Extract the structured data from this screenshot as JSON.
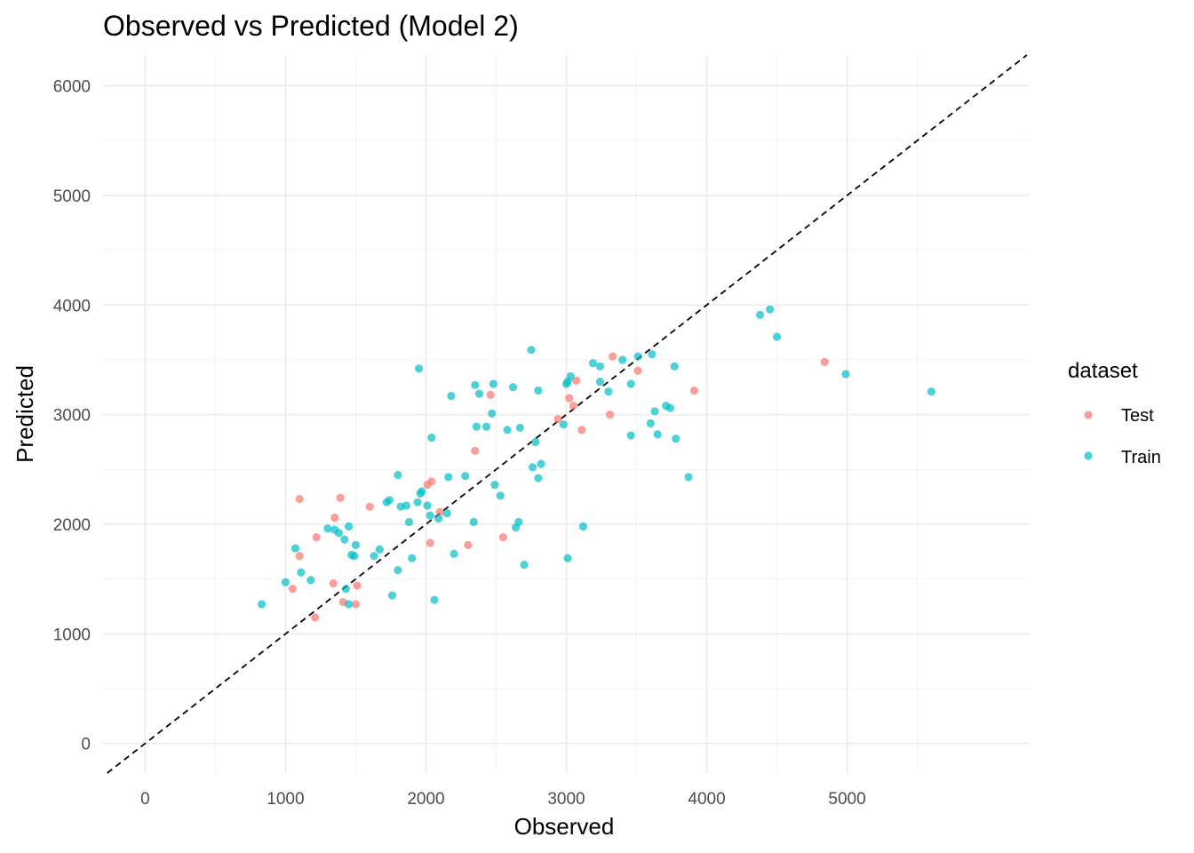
{
  "chart_data": {
    "type": "scatter",
    "title": "Observed vs Predicted (Model 2)",
    "xlabel": "Observed",
    "ylabel": "Predicted",
    "xlim": [
      -300,
      6300
    ],
    "ylim": [
      -270,
      6280
    ],
    "x_ticks": [
      0,
      1000,
      2000,
      3000,
      4000,
      5000
    ],
    "y_ticks": [
      0,
      1000,
      2000,
      3000,
      4000,
      5000,
      6000
    ],
    "x_tick_labels": [
      "0",
      "1000",
      "2000",
      "3000",
      "4000",
      "5000"
    ],
    "y_tick_labels": [
      "0",
      "1000",
      "2000",
      "3000",
      "4000",
      "5000",
      "6000"
    ],
    "reference_line": "y = x",
    "legend": {
      "title": "dataset",
      "position": "right"
    },
    "series": [
      {
        "name": "Test",
        "color": "#F8766D",
        "points": [
          [
            1100,
            2230
          ],
          [
            1100,
            1710
          ],
          [
            1050,
            1410
          ],
          [
            1220,
            1880
          ],
          [
            1210,
            1150
          ],
          [
            1340,
            1460
          ],
          [
            1350,
            2060
          ],
          [
            1390,
            2240
          ],
          [
            1410,
            1290
          ],
          [
            1500,
            1270
          ],
          [
            1510,
            1440
          ],
          [
            1600,
            2160
          ],
          [
            2010,
            2360
          ],
          [
            2030,
            1830
          ],
          [
            2040,
            2390
          ],
          [
            2100,
            2110
          ],
          [
            2300,
            1810
          ],
          [
            2350,
            2670
          ],
          [
            2460,
            3180
          ],
          [
            2550,
            1880
          ],
          [
            2940,
            2960
          ],
          [
            3020,
            3150
          ],
          [
            3050,
            3080
          ],
          [
            3070,
            3310
          ],
          [
            3110,
            2860
          ],
          [
            3310,
            3000
          ],
          [
            3330,
            3530
          ],
          [
            3510,
            3400
          ],
          [
            3910,
            3220
          ],
          [
            4840,
            3480
          ]
        ]
      },
      {
        "name": "Train",
        "color": "#00BFC4",
        "points": [
          [
            830,
            1270
          ],
          [
            1000,
            1470
          ],
          [
            1070,
            1780
          ],
          [
            1110,
            1560
          ],
          [
            1180,
            1490
          ],
          [
            1300,
            1960
          ],
          [
            1350,
            1950
          ],
          [
            1380,
            1920
          ],
          [
            1420,
            1860
          ],
          [
            1430,
            1410
          ],
          [
            1450,
            1980
          ],
          [
            1450,
            1270
          ],
          [
            1470,
            1720
          ],
          [
            1490,
            1710
          ],
          [
            1500,
            1810
          ],
          [
            1630,
            1710
          ],
          [
            1670,
            1770
          ],
          [
            1720,
            2200
          ],
          [
            1740,
            2220
          ],
          [
            1760,
            1350
          ],
          [
            1800,
            1580
          ],
          [
            1800,
            2450
          ],
          [
            1820,
            2160
          ],
          [
            1860,
            2170
          ],
          [
            1880,
            2020
          ],
          [
            1900,
            1690
          ],
          [
            1940,
            2200
          ],
          [
            1950,
            3420
          ],
          [
            1960,
            2280
          ],
          [
            1970,
            2300
          ],
          [
            2010,
            2170
          ],
          [
            2030,
            2080
          ],
          [
            2040,
            2790
          ],
          [
            2060,
            1310
          ],
          [
            2090,
            2050
          ],
          [
            2150,
            2100
          ],
          [
            2160,
            2430
          ],
          [
            2180,
            3170
          ],
          [
            2200,
            1730
          ],
          [
            2280,
            2440
          ],
          [
            2340,
            2020
          ],
          [
            2350,
            3270
          ],
          [
            2360,
            2890
          ],
          [
            2380,
            3190
          ],
          [
            2430,
            2890
          ],
          [
            2470,
            3010
          ],
          [
            2480,
            3280
          ],
          [
            2490,
            2360
          ],
          [
            2530,
            2260
          ],
          [
            2580,
            2860
          ],
          [
            2620,
            3250
          ],
          [
            2640,
            1970
          ],
          [
            2660,
            2020
          ],
          [
            2670,
            2880
          ],
          [
            2700,
            1630
          ],
          [
            2750,
            3590
          ],
          [
            2760,
            2520
          ],
          [
            2780,
            2750
          ],
          [
            2800,
            2420
          ],
          [
            2800,
            3220
          ],
          [
            2820,
            2550
          ],
          [
            2980,
            2910
          ],
          [
            3000,
            3280
          ],
          [
            3010,
            1690
          ],
          [
            3010,
            3300
          ],
          [
            3030,
            3350
          ],
          [
            3120,
            1980
          ],
          [
            3190,
            3470
          ],
          [
            3240,
            3300
          ],
          [
            3240,
            3440
          ],
          [
            3300,
            3210
          ],
          [
            3400,
            3500
          ],
          [
            3460,
            2810
          ],
          [
            3460,
            3280
          ],
          [
            3510,
            3530
          ],
          [
            3600,
            2920
          ],
          [
            3610,
            3550
          ],
          [
            3630,
            3030
          ],
          [
            3650,
            2820
          ],
          [
            3710,
            3080
          ],
          [
            3740,
            3060
          ],
          [
            3770,
            3440
          ],
          [
            3780,
            2780
          ],
          [
            3870,
            2430
          ],
          [
            4380,
            3910
          ],
          [
            4450,
            3960
          ],
          [
            4500,
            3710
          ],
          [
            4990,
            3370
          ],
          [
            5600,
            3210
          ]
        ]
      }
    ]
  }
}
